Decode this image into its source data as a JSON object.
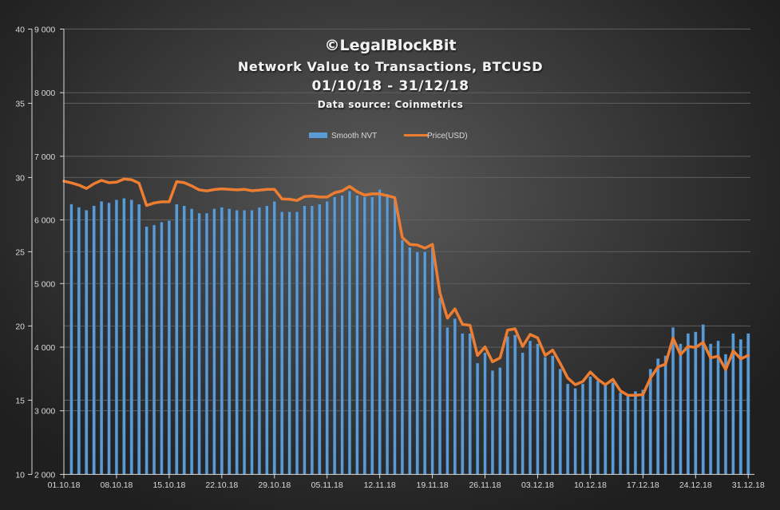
{
  "chart_data": {
    "type": "bar+line",
    "title": "©LegalBlockBit",
    "subtitle": "Network Value to Transactions, BTCUSD",
    "date_range": "01/10/18 - 31/12/18",
    "source": "Data source: Coinmetrics",
    "legend": {
      "placement": "top-center",
      "entries": [
        "Smooth NVT",
        "Price(USD)"
      ]
    },
    "colors": {
      "nvt": "#5b9bd5",
      "price": "#ed7d31",
      "grid": "#5f5f5f",
      "axis": "#d9d9d9"
    },
    "grid": true,
    "y_left_outer": {
      "label": "Smooth NVT",
      "range": [
        10,
        40
      ],
      "ticks": [
        "10",
        "15",
        "20",
        "25",
        "30",
        "35",
        "40"
      ]
    },
    "y_left_inner": {
      "label": "Price(USD)",
      "range": [
        2000,
        9000
      ],
      "ticks": [
        "2 000",
        "3 000",
        "4 000",
        "5 000",
        "6 000",
        "7 000",
        "8 000",
        "9 000"
      ]
    },
    "x_ticks": [
      "01.10.18",
      "08.10.18",
      "15.10.18",
      "22.10.18",
      "29.10.18",
      "05.11.18",
      "12.11.18",
      "19.11.18",
      "26.11.18",
      "03.12.18",
      "10.12.18",
      "17.12.18",
      "24.12.18",
      "31.12.18"
    ],
    "x_start": "01.10.18",
    "series": [
      {
        "name": "Smooth NVT",
        "type": "bar",
        "start_day": 1,
        "values": [
          28.2,
          28.0,
          27.8,
          28.1,
          28.4,
          28.3,
          28.5,
          28.6,
          28.5,
          28.2,
          26.7,
          26.8,
          27.0,
          27.1,
          28.2,
          28.1,
          27.9,
          27.6,
          27.6,
          27.9,
          28.0,
          27.9,
          27.8,
          27.8,
          27.8,
          28.0,
          28.1,
          28.4,
          27.7,
          27.7,
          27.7,
          28.1,
          28.1,
          28.2,
          28.4,
          28.7,
          28.8,
          29.1,
          28.8,
          28.7,
          28.7,
          29.2,
          28.9,
          28.6,
          25.8,
          25.3,
          25.0,
          25.0,
          25.3,
          21.9,
          19.9,
          20.5,
          19.5,
          19.5,
          17.5,
          18.2,
          17.0,
          17.2,
          19.3,
          19.4,
          18.2,
          19.0,
          18.8,
          17.9,
          18.0,
          17.1,
          16.1,
          15.8,
          16.1,
          16.6,
          16.3,
          16.1,
          16.2,
          15.5,
          15.3,
          15.6,
          15.7,
          17.1,
          17.8,
          18.0,
          19.9,
          18.8,
          19.5,
          19.6,
          20.1,
          18.8,
          19.0,
          18.1,
          19.5,
          19.1,
          19.5
        ]
      },
      {
        "name": "Price(USD)",
        "type": "line",
        "start_day": 0,
        "values": [
          6610,
          6581,
          6547,
          6493,
          6569,
          6622,
          6585,
          6594,
          6644,
          6631,
          6577,
          6226,
          6267,
          6284,
          6284,
          6602,
          6585,
          6535,
          6472,
          6456,
          6477,
          6489,
          6481,
          6472,
          6481,
          6459,
          6468,
          6481,
          6481,
          6330,
          6326,
          6305,
          6368,
          6376,
          6359,
          6359,
          6427,
          6456,
          6527,
          6443,
          6389,
          6410,
          6410,
          6380,
          6351,
          5724,
          5615,
          5606,
          5556,
          5615,
          4853,
          4456,
          4602,
          4360,
          4343,
          3870,
          4004,
          3770,
          3833,
          4268,
          4288,
          4011,
          4200,
          4145,
          3870,
          3954,
          3745,
          3515,
          3410,
          3460,
          3610,
          3494,
          3410,
          3494,
          3314,
          3243,
          3243,
          3255,
          3515,
          3691,
          3732,
          4143,
          3883,
          4011,
          3996,
          4075,
          3833,
          3858,
          3648,
          3942,
          3816,
          3870
        ]
      }
    ]
  }
}
